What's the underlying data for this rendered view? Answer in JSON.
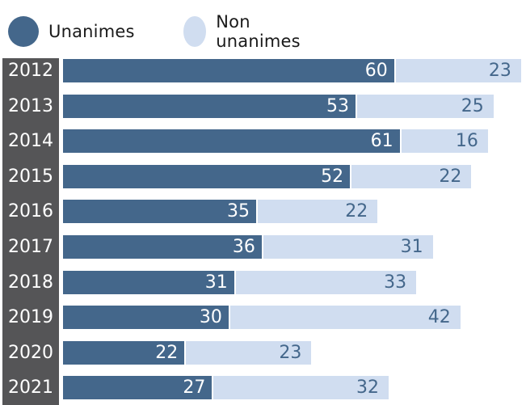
{
  "legend": [
    {
      "label": "Unanimes",
      "color": "#44678b"
    },
    {
      "label": "Non unanimes",
      "color": "#d0ddf0"
    }
  ],
  "colors": {
    "unanimes": "#44678b",
    "non_unanimes": "#d0ddf0",
    "year_strip": "#555557"
  },
  "chart_data": {
    "type": "bar",
    "orientation": "horizontal",
    "stacked": true,
    "title": "",
    "xlabel": "",
    "ylabel": "",
    "legend_position": "top",
    "grid": false,
    "categories": [
      "2012",
      "2013",
      "2014",
      "2015",
      "2016",
      "2017",
      "2018",
      "2019",
      "2020",
      "2021"
    ],
    "series": [
      {
        "name": "Unanimes",
        "color": "#44678b",
        "values": [
          60,
          53,
          61,
          52,
          35,
          36,
          31,
          30,
          22,
          27
        ]
      },
      {
        "name": "Non unanimes",
        "color": "#d0ddf0",
        "values": [
          23,
          25,
          16,
          22,
          22,
          31,
          33,
          42,
          23,
          32
        ]
      }
    ]
  },
  "rows": [
    {
      "year": "2012",
      "unanimes": "60",
      "non_unanimes": "23"
    },
    {
      "year": "2013",
      "unanimes": "53",
      "non_unanimes": "25"
    },
    {
      "year": "2014",
      "unanimes": "61",
      "non_unanimes": "16"
    },
    {
      "year": "2015",
      "unanimes": "52",
      "non_unanimes": "22"
    },
    {
      "year": "2016",
      "unanimes": "35",
      "non_unanimes": "22"
    },
    {
      "year": "2017",
      "unanimes": "36",
      "non_unanimes": "31"
    },
    {
      "year": "2018",
      "unanimes": "31",
      "non_unanimes": "33"
    },
    {
      "year": "2019",
      "unanimes": "30",
      "non_unanimes": "42"
    },
    {
      "year": "2020",
      "unanimes": "22",
      "non_unanimes": "23"
    },
    {
      "year": "2021",
      "unanimes": "27",
      "non_unanimes": "32"
    }
  ]
}
